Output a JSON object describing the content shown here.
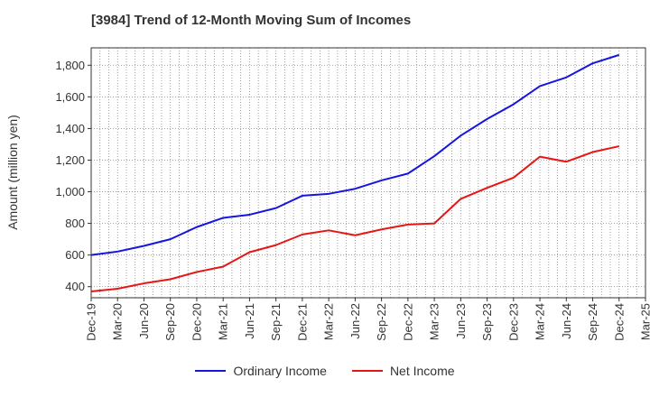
{
  "chart_data": {
    "type": "line",
    "title": "[3984]  Trend of 12-Month Moving Sum of Incomes",
    "ylabel": "Amount (million yen)",
    "xlabel": "",
    "ylim": [
      330,
      1910
    ],
    "yticks": [
      400,
      600,
      800,
      1000,
      1200,
      1400,
      1600,
      1800
    ],
    "ytick_labels": [
      "400",
      "600",
      "800",
      "1,000",
      "1,200",
      "1,400",
      "1,600",
      "1,800"
    ],
    "categories": [
      "Dec-19",
      "Mar-20",
      "Jun-20",
      "Sep-20",
      "Dec-20",
      "Mar-21",
      "Jun-21",
      "Sep-21",
      "Dec-21",
      "Mar-22",
      "Jun-22",
      "Sep-22",
      "Dec-22",
      "Mar-23",
      "Jun-23",
      "Sep-23",
      "Dec-23",
      "Mar-24",
      "Jun-24",
      "Sep-24",
      "Dec-24",
      "Mar-25"
    ],
    "grid": true,
    "legend_position": "bottom",
    "series": [
      {
        "name": "Ordinary Income",
        "color": "#1515e0",
        "values": [
          600,
          622,
          658,
          700,
          777,
          835,
          855,
          897,
          975,
          987,
          1019,
          1072,
          1115,
          1225,
          1355,
          1460,
          1553,
          1668,
          1723,
          1812,
          1865,
          null
        ]
      },
      {
        "name": "Net Income",
        "color": "#e81515",
        "values": [
          370,
          387,
          421,
          447,
          493,
          527,
          618,
          663,
          730,
          756,
          725,
          762,
          793,
          800,
          955,
          1025,
          1089,
          1222,
          1190,
          1251,
          1288,
          null
        ]
      }
    ]
  }
}
